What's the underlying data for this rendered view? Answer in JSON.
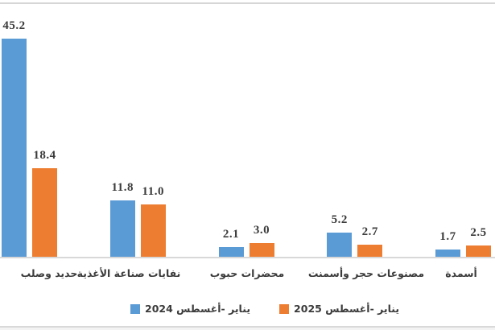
{
  "chart_data": {
    "type": "bar",
    "categories": [
      "حديد وصلب",
      "نفايات صناعة الأغذية",
      "محضرات حبوب",
      "مصنوعات حجر وأسمنت",
      "أسمدة"
    ],
    "series": [
      {
        "name": "يناير -أغسطس 2024",
        "color": "#5B9BD5",
        "values": [
          45.2,
          11.8,
          2.1,
          5.2,
          1.7
        ]
      },
      {
        "name": "يناير -أغسطس 2025",
        "color": "#ED7D31",
        "values": [
          18.4,
          11.0,
          3.0,
          2.7,
          2.5
        ]
      }
    ],
    "value_labels": [
      [
        "45.2",
        "11.8",
        "2.1",
        "5.2",
        "1.7"
      ],
      [
        "18.4",
        "11.0",
        "3.0",
        "2.7",
        "2.5"
      ]
    ],
    "title": "",
    "xlabel": "",
    "ylabel": "",
    "ylim": [
      0,
      53
    ],
    "grid": false,
    "legend_position": "bottom",
    "axis_color": "#d8d8d8",
    "label_color": "#3b3b3b",
    "background": "#ffffff"
  }
}
